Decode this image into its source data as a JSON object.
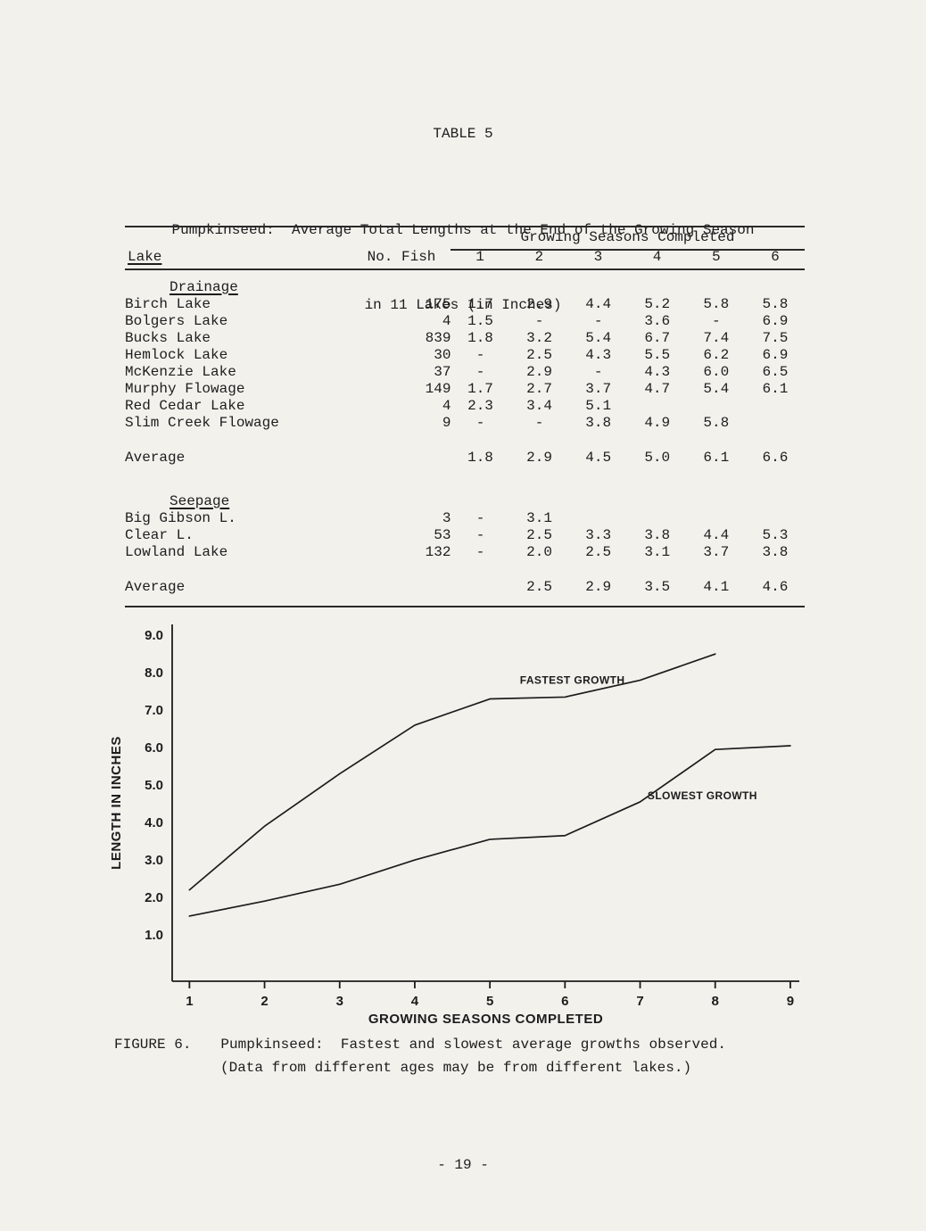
{
  "page": {
    "table_label": "TABLE 5",
    "title_line1": "Pumpkinseed:  Average Total Lengths at the End of the Growing Season",
    "title_line2": "in 11 Lakes (in Inches)",
    "page_number": "- 19 -"
  },
  "table": {
    "group_header": "Growing Seasons Completed",
    "lake_header": "Lake",
    "fish_header": "No. Fish",
    "season_headers": [
      "1",
      "2",
      "3",
      "4",
      "5",
      "6"
    ],
    "sections": [
      {
        "name": "Drainage",
        "rows": [
          {
            "lake": "Birch Lake",
            "fish": "175",
            "values": [
              "1.7",
              "2.9",
              "4.4",
              "5.2",
              "5.8",
              "5.8"
            ]
          },
          {
            "lake": "Bolgers Lake",
            "fish": "4",
            "values": [
              "1.5",
              "-",
              "-",
              "3.6",
              "-",
              "6.9"
            ]
          },
          {
            "lake": "Bucks Lake",
            "fish": "839",
            "values": [
              "1.8",
              "3.2",
              "5.4",
              "6.7",
              "7.4",
              "7.5"
            ]
          },
          {
            "lake": "Hemlock Lake",
            "fish": "30",
            "values": [
              "-",
              "2.5",
              "4.3",
              "5.5",
              "6.2",
              "6.9"
            ]
          },
          {
            "lake": "McKenzie Lake",
            "fish": "37",
            "values": [
              "-",
              "2.9",
              "-",
              "4.3",
              "6.0",
              "6.5"
            ]
          },
          {
            "lake": "Murphy Flowage",
            "fish": "149",
            "values": [
              "1.7",
              "2.7",
              "3.7",
              "4.7",
              "5.4",
              "6.1"
            ]
          },
          {
            "lake": "Red Cedar Lake",
            "fish": "4",
            "values": [
              "2.3",
              "3.4",
              "5.1",
              "",
              "",
              ""
            ]
          },
          {
            "lake": "Slim Creek Flowage",
            "fish": "9",
            "values": [
              "-",
              "-",
              "3.8",
              "4.9",
              "5.8",
              ""
            ]
          }
        ],
        "average": {
          "label": "Average",
          "values": [
            "1.8",
            "2.9",
            "4.5",
            "5.0",
            "6.1",
            "6.6"
          ]
        }
      },
      {
        "name": "Seepage",
        "rows": [
          {
            "lake": "Big Gibson L.",
            "fish": "3",
            "values": [
              "-",
              "3.1",
              "",
              "",
              "",
              ""
            ]
          },
          {
            "lake": "Clear L.",
            "fish": "53",
            "values": [
              "-",
              "2.5",
              "3.3",
              "3.8",
              "4.4",
              "5.3"
            ]
          },
          {
            "lake": "Lowland Lake",
            "fish": "132",
            "values": [
              "-",
              "2.0",
              "2.5",
              "3.1",
              "3.7",
              "3.8"
            ]
          }
        ],
        "average": {
          "label": "Average",
          "values": [
            "",
            "2.5",
            "2.9",
            "3.5",
            "4.1",
            "4.6"
          ]
        }
      }
    ]
  },
  "figure": {
    "label": "FIGURE 6.",
    "caption_line1": "Pumpkinseed:  Fastest and slowest average growths observed.",
    "caption_line2": "(Data from different ages may be from different lakes.)"
  },
  "chart_data": {
    "type": "line",
    "title": "",
    "xlabel": "GROWING SEASONS COMPLETED",
    "ylabel": "LENGTH IN INCHES",
    "x_ticks": [
      1,
      2,
      3,
      4,
      5,
      6,
      7,
      8,
      9
    ],
    "y_ticks": [
      1,
      2,
      3,
      4,
      5,
      6,
      7,
      8,
      9
    ],
    "y_tick_labels": [
      "1.0",
      "2.0",
      "3.0",
      "4.0",
      "5.0",
      "6.0",
      "7.0",
      "8.0",
      "9.0"
    ],
    "xlim": [
      0.77,
      9.12
    ],
    "ylim": [
      -0.24,
      9.29
    ],
    "grid": false,
    "legend_position": "inline-labels",
    "series": [
      {
        "name": "FASTEST GROWTH",
        "x": [
          1,
          2,
          3,
          4,
          5,
          6,
          7,
          8
        ],
        "y": [
          2.2,
          3.9,
          5.3,
          6.6,
          7.3,
          7.35,
          7.8,
          8.5
        ],
        "label_x": 5.4,
        "label_y": 7.7
      },
      {
        "name": "SLOWEST GROWTH",
        "x": [
          1,
          2,
          3,
          4,
          5,
          6,
          7,
          8,
          9
        ],
        "y": [
          1.5,
          1.9,
          2.35,
          3.0,
          3.55,
          3.65,
          4.55,
          5.95,
          6.05
        ],
        "label_x": 7.1,
        "label_y": 4.62
      }
    ]
  }
}
